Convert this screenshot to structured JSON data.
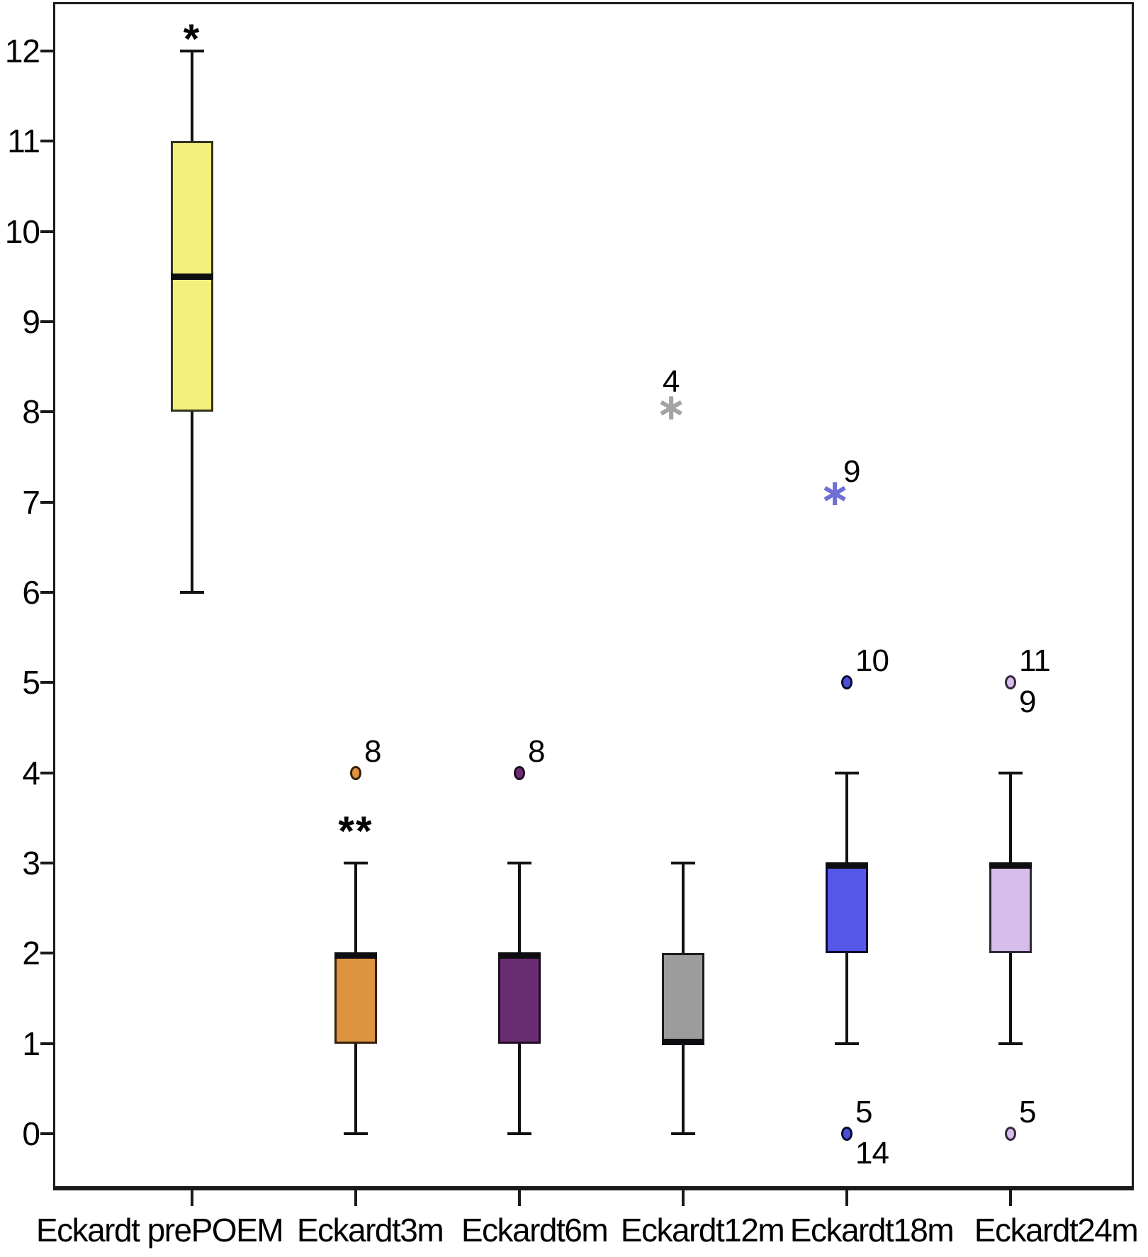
{
  "figure": {
    "background": "#ffffff",
    "axis_color": "#1a1a1a",
    "text_color": "#000000"
  },
  "chart_data": {
    "type": "boxplot",
    "title": "",
    "xlabel": "",
    "ylabel": "",
    "ylim": [
      0,
      12
    ],
    "yticks": [
      "0",
      "1",
      "2",
      "3",
      "4",
      "5",
      "6",
      "7",
      "8",
      "9",
      "10",
      "11",
      "12"
    ],
    "grid": false,
    "legend": false,
    "categories": [
      "Eckardt prePOEM",
      "Eckardt3m",
      "Eckardt6m",
      "Eckardt12m",
      "Eckardt18m",
      "Eckardt24m"
    ],
    "series": [
      {
        "label": "Eckardt prePOEM",
        "fill": "#f3ef7d",
        "border": "#33331f",
        "whisker_low": 6,
        "q1": 8,
        "median": 9.5,
        "q3": 11,
        "whisker_high": 12,
        "median_position": "middle",
        "outliers": [],
        "annotation": {
          "text": "*",
          "value": 12.2
        }
      },
      {
        "label": "Eckardt3m",
        "fill": "#de9340",
        "border": "#33200a",
        "whisker_low": 0,
        "q1": 1,
        "median": 2,
        "q3": 2,
        "whisker_high": 3,
        "median_position": "top",
        "outliers": [
          {
            "type": "circle",
            "value": 4,
            "color": "#de9340",
            "labels": [
              "8"
            ],
            "label_pos": [
              "upper-right"
            ]
          }
        ],
        "annotation": {
          "text": "**",
          "value": 3.42
        }
      },
      {
        "label": "Eckardt6m",
        "fill": "#6b2d72",
        "border": "#200c24",
        "whisker_low": 0,
        "q1": 1,
        "median": 2,
        "q3": 2,
        "whisker_high": 3,
        "median_position": "top",
        "outliers": [
          {
            "type": "circle",
            "value": 4,
            "color": "#6b2d72",
            "labels": [
              "8"
            ],
            "label_pos": [
              "upper-right"
            ]
          }
        ],
        "annotation": null
      },
      {
        "label": "Eckardt12m",
        "fill": "#9c9c9c",
        "border": "#1c1c1c",
        "whisker_low": 0,
        "q1": 1,
        "median": 1,
        "q3": 2,
        "whisker_high": 3,
        "median_position": "bottom",
        "outliers": [
          {
            "type": "star",
            "value": 8.05,
            "color": "#a3a3a3",
            "labels": [
              "4"
            ],
            "label_pos": [
              "above"
            ]
          }
        ],
        "annotation": null
      },
      {
        "label": "Eckardt18m",
        "fill": "#5457e8",
        "border": "#0a0a30",
        "whisker_low": 1,
        "q1": 2,
        "median": 3,
        "q3": 3,
        "whisker_high": 4,
        "median_position": "top",
        "outliers": [
          {
            "type": "star",
            "value": 7.1,
            "color": "#6e70d4",
            "labels": [
              "9"
            ],
            "label_pos": [
              "upper-right"
            ]
          },
          {
            "type": "circle",
            "value": 5,
            "color": "#4a50d8",
            "labels": [
              "10"
            ],
            "label_pos": [
              "upper-right"
            ]
          },
          {
            "type": "circle",
            "value": 0,
            "color": "#4a50d8",
            "labels": [
              "5",
              "14"
            ],
            "label_pos": [
              "upper-right",
              "lower-right"
            ]
          }
        ],
        "annotation": null
      },
      {
        "label": "Eckardt24m",
        "fill": "#d7bde9",
        "border": "#2f2a3a",
        "whisker_low": 1,
        "q1": 2,
        "median": 3,
        "q3": 3,
        "whisker_high": 4,
        "median_position": "top",
        "outliers": [
          {
            "type": "circle",
            "value": 5,
            "color": "#d7bde9",
            "labels": [
              "11",
              "9"
            ],
            "label_pos": [
              "upper-right",
              "lower-right"
            ]
          },
          {
            "type": "circle",
            "value": 0,
            "color": "#d7bde9",
            "labels": [
              "5"
            ],
            "label_pos": [
              "upper-right"
            ]
          }
        ],
        "annotation": null
      }
    ]
  }
}
